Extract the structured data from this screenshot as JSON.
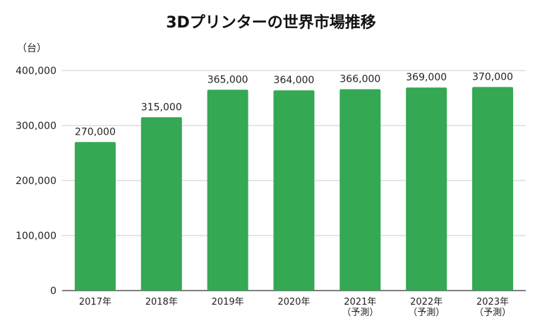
{
  "chart_data": {
    "type": "bar",
    "title": "3Dプリンターの世界市場推移",
    "ylabel": "（台）",
    "xlabel": "",
    "categories": [
      [
        "2017年"
      ],
      [
        "2018年"
      ],
      [
        "2019年"
      ],
      [
        "2020年"
      ],
      [
        "2021年",
        "（予測）"
      ],
      [
        "2022年",
        "（予測）"
      ],
      [
        "2023年",
        "（予測）"
      ]
    ],
    "values": [
      270000,
      315000,
      365000,
      364000,
      366000,
      369000,
      370000
    ],
    "value_labels": [
      "270,000",
      "315,000",
      "365,000",
      "364,000",
      "366,000",
      "369,000",
      "370,000"
    ],
    "ylim": [
      0,
      400000
    ],
    "yticks": [
      0,
      100000,
      200000,
      300000,
      400000
    ],
    "ytick_labels": [
      "0",
      "100,000",
      "200,000",
      "300,000",
      "400,000"
    ],
    "grid": true,
    "bar_color": "#34a853"
  }
}
